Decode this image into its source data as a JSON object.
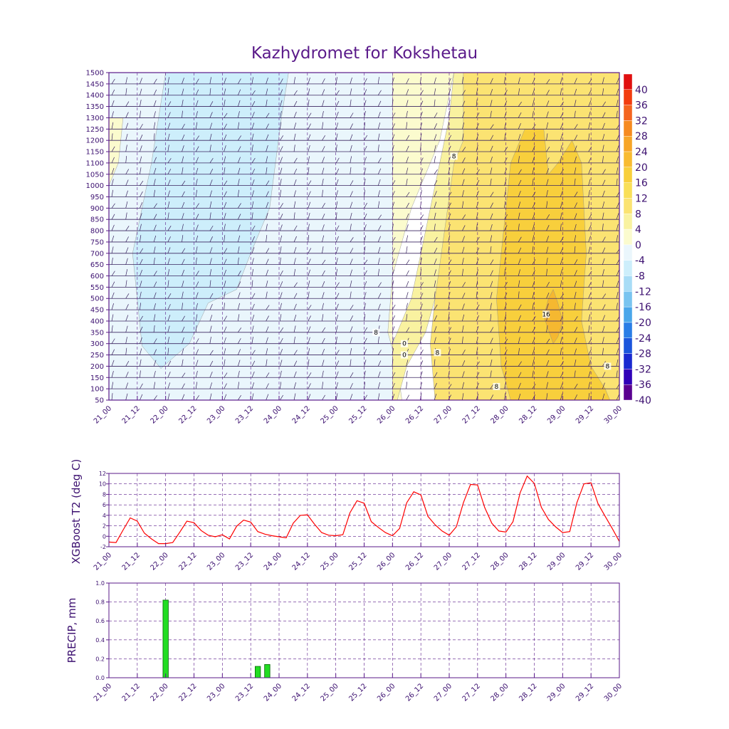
{
  "title": "Kazhydromet for Kokshetau",
  "colors": {
    "frame": "#5a1a8a",
    "barb": "#3a2560",
    "t2_line": "#ff0000",
    "precip_bar": "#22dd22",
    "precip_edge": "#006600"
  },
  "x_tick_labels": [
    "21_00",
    "21_12",
    "22_00",
    "22_12",
    "23_00",
    "23_12",
    "24_00",
    "24_12",
    "25_00",
    "25_12",
    "26_00",
    "26_12",
    "27_00",
    "27_12",
    "28_00",
    "28_12",
    "29_00",
    "29_12",
    "30_00"
  ],
  "chart_data": [
    {
      "type": "heatmap",
      "title": "Kazhydromet for Kokshetau",
      "ylabel": "",
      "ylim": [
        50,
        1500
      ],
      "y_ticks": [
        50,
        100,
        150,
        200,
        250,
        300,
        350,
        400,
        450,
        500,
        550,
        600,
        650,
        700,
        750,
        800,
        850,
        900,
        950,
        1000,
        1050,
        1100,
        1150,
        1200,
        1250,
        1300,
        1350,
        1400,
        1450,
        1500
      ],
      "x_range_hours": [
        0,
        216
      ],
      "regions": [
        {
          "label": "-4 to 0",
          "color": "#eaf6fc",
          "polygon": [
            [
              0,
              50
            ],
            [
              0,
              1500
            ],
            [
              120,
              1500
            ],
            [
              120,
              50
            ]
          ]
        },
        {
          "label": "-8 to -4",
          "color": "#cdeefb",
          "polygon": [
            [
              14,
              290
            ],
            [
              10,
              700
            ],
            [
              18,
              1100
            ],
            [
              24,
              1500
            ],
            [
              76,
              1500
            ],
            [
              73,
              1300
            ],
            [
              68,
              900
            ],
            [
              60,
              700
            ],
            [
              54,
              540
            ],
            [
              42,
              480
            ],
            [
              34,
              300
            ],
            [
              22,
              190
            ]
          ]
        },
        {
          "label": "0 to 4",
          "color": "#fbfbce",
          "polygon": [
            [
              120,
              50
            ],
            [
              120,
              1500
            ],
            [
              146,
              1500
            ],
            [
              140,
              1200
            ],
            [
              128,
              900
            ],
            [
              120,
              600
            ],
            [
              118,
              350
            ],
            [
              122,
              200
            ],
            [
              124,
              50
            ]
          ]
        },
        {
          "label": "0 to 4 (early)",
          "color": "#fbfbce",
          "polygon": [
            [
              0,
              1000
            ],
            [
              0,
              1300
            ],
            [
              6,
              1300
            ],
            [
              4,
              1100
            ]
          ]
        },
        {
          "label": "4 to 8",
          "color": "#f9f2a0",
          "polygon": [
            [
              120,
              50
            ],
            [
              120,
              300
            ],
            [
              128,
              500
            ],
            [
              134,
              800
            ],
            [
              140,
              1100
            ],
            [
              144,
              1300
            ],
            [
              146,
              1500
            ],
            [
              155,
              1500
            ],
            [
              158,
              1200
            ],
            [
              150,
              900
            ],
            [
              144,
              700
            ],
            [
              138,
              500
            ],
            [
              134,
              350
            ],
            [
              126,
              200
            ],
            [
              122,
              50
            ]
          ]
        },
        {
          "label": "8 to 12",
          "color": "#fbe372",
          "polygon": [
            [
              150,
              1500
            ],
            [
              150,
              1200
            ],
            [
              146,
              1100
            ],
            [
              142,
              800
            ],
            [
              138,
              500
            ],
            [
              136,
              300
            ],
            [
              138,
              50
            ],
            [
              216,
              50
            ],
            [
              216,
              1500
            ]
          ]
        },
        {
          "label": "12 to 16",
          "color": "#f8cf3c",
          "polygon": [
            [
              168,
              900
            ],
            [
              170,
              1100
            ],
            [
              176,
              1250
            ],
            [
              184,
              1250
            ],
            [
              186,
              1050
            ],
            [
              190,
              1100
            ],
            [
              196,
              1200
            ],
            [
              200,
              1100
            ],
            [
              202,
              700
            ],
            [
              200,
              400
            ],
            [
              204,
              200
            ],
            [
              210,
              100
            ],
            [
              212,
              50
            ],
            [
              170,
              50
            ],
            [
              166,
              200
            ],
            [
              164,
              500
            ],
            [
              166,
              700
            ]
          ]
        },
        {
          "label": "16 to 20",
          "color": "#f5b830",
          "polygon": [
            [
              184,
              420
            ],
            [
              186,
              500
            ],
            [
              188,
              540
            ],
            [
              190,
              480
            ],
            [
              192,
              400
            ],
            [
              190,
              330
            ],
            [
              188,
              300
            ]
          ]
        }
      ],
      "colorbar": {
        "labels": [
          "40",
          "36",
          "32",
          "28",
          "24",
          "20",
          "16",
          "12",
          "8",
          "4",
          "0",
          "-4",
          "-8",
          "-12",
          "-16",
          "-20",
          "-24",
          "-28",
          "-32",
          "-36",
          "-40"
        ],
        "colors": [
          "#e01010",
          "#f23c10",
          "#f46420",
          "#f68a20",
          "#f7a528",
          "#f8bb32",
          "#f8cf3c",
          "#f9df58",
          "#fbe372",
          "#f9f2a0",
          "#fbfbce",
          "#eaf6fc",
          "#cdeefb",
          "#a8dcf6",
          "#79c4f0",
          "#4aa6ea",
          "#2a7de6",
          "#1b55dc",
          "#1a2ad0",
          "#3000b8",
          "#5a0090"
        ]
      },
      "contour_labels": [
        {
          "text": "8",
          "x": 146,
          "y": 1130
        },
        {
          "text": "16",
          "x": 185,
          "y": 430
        },
        {
          "text": "8",
          "x": 164,
          "y": 110
        },
        {
          "text": "8",
          "x": 113,
          "y": 350
        },
        {
          "text": "8",
          "x": 139,
          "y": 260
        },
        {
          "text": "8",
          "x": 211,
          "y": 200
        },
        {
          "text": "0",
          "x": 125,
          "y": 300
        },
        {
          "text": "0",
          "x": 125,
          "y": 250
        }
      ]
    },
    {
      "type": "line",
      "title": "",
      "xlabel": "",
      "ylabel": "XGBoost T2 (deg C)",
      "ylim": [
        -2,
        12
      ],
      "y_ticks": [
        -2,
        0,
        2,
        4,
        6,
        8,
        10,
        12
      ],
      "x": [
        0,
        3,
        6,
        9,
        12,
        15,
        18,
        21,
        24,
        27,
        30,
        33,
        36,
        39,
        42,
        45,
        48,
        51,
        54,
        57,
        60,
        63,
        66,
        69,
        72,
        75,
        78,
        81,
        84,
        87,
        90,
        93,
        96,
        99,
        102,
        105,
        108,
        111,
        114,
        117,
        120,
        123,
        126,
        129,
        132,
        135,
        138,
        141,
        144,
        147,
        150,
        153,
        156,
        159,
        162,
        165,
        168,
        171,
        174,
        177,
        180,
        183,
        186,
        189,
        192,
        195,
        198,
        201,
        204,
        207,
        210,
        213,
        216
      ],
      "series": [
        {
          "name": "XGBoost T2",
          "values": [
            -1.1,
            -1.2,
            1.2,
            3.5,
            2.9,
            0.6,
            -0.5,
            -1.4,
            -1.4,
            -1.2,
            0.8,
            2.9,
            2.6,
            1.1,
            0.2,
            -0.1,
            0.3,
            -0.5,
            1.9,
            3.1,
            2.7,
            0.9,
            0.4,
            0.1,
            -0.1,
            -0.3,
            2.5,
            4.0,
            4.1,
            2.3,
            0.7,
            0.2,
            0.1,
            0.3,
            4.5,
            6.8,
            6.3,
            2.8,
            1.7,
            0.7,
            0.1,
            1.5,
            6.4,
            8.5,
            7.9,
            3.8,
            2.2,
            1.0,
            0.2,
            1.8,
            6.4,
            9.9,
            9.8,
            5.5,
            2.5,
            1.0,
            0.8,
            2.8,
            8.3,
            11.5,
            10.1,
            5.5,
            3.2,
            1.8,
            0.7,
            0.9,
            6.4,
            10.0,
            10.2,
            6.2,
            3.8,
            1.5,
            -1.0
          ]
        }
      ]
    },
    {
      "type": "bar",
      "title": "",
      "xlabel": "",
      "ylabel": "PRECIP, mm",
      "ylim": [
        0,
        1.0
      ],
      "y_ticks": [
        0.0,
        0.2,
        0.4,
        0.6,
        0.8,
        1.0
      ],
      "bar_width_hours": 3,
      "x": [
        24,
        63,
        67
      ],
      "values": [
        0.82,
        0.12,
        0.14
      ]
    }
  ]
}
